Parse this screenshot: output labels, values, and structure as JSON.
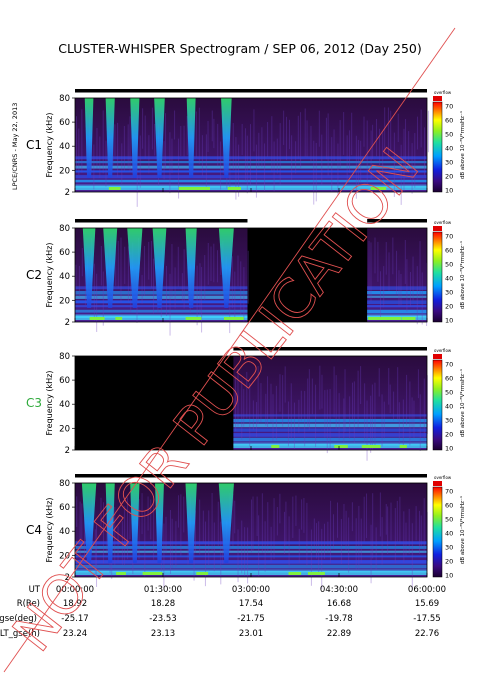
{
  "title": "CLUSTER-WHISPER Spectrogram / SEP 06, 2012 (Day 250)",
  "credit": "LPCE/CNRS - May 22, 2013",
  "watermark": "NOT FOR PUBLICATION",
  "colorbar": {
    "label": "dB above 10⁻⁸V²rmsHz⁻¹",
    "ticks": [
      "70",
      "60",
      "50",
      "40",
      "30",
      "20",
      "10"
    ],
    "top_label": "overflow"
  },
  "frequency_axis": {
    "label": "Frequency (kHz)",
    "ticks": [
      "80",
      "60",
      "40",
      "20",
      "2"
    ],
    "range": [
      2,
      80
    ]
  },
  "spacecraft": [
    {
      "name": "C1",
      "label_color": "#000000"
    },
    {
      "name": "C2",
      "label_color": "#000000"
    },
    {
      "name": "C3",
      "label_color": "#2faa3c"
    },
    {
      "name": "C4",
      "label_color": "#000000"
    }
  ],
  "orbit_table": {
    "row_labels": [
      "UT",
      "R(Re)",
      "Lat_gse(deg)",
      "LT_gse(h)"
    ],
    "columns": [
      {
        "UT": "00:00:00",
        "R(Re)": "18.92",
        "Lat_gse(deg)": "-25.17",
        "LT_gse(h)": "23.24"
      },
      {
        "UT": "01:30:00",
        "R(Re)": "18.28",
        "Lat_gse(deg)": "-23.53",
        "LT_gse(h)": "23.13"
      },
      {
        "UT": "03:00:00",
        "R(Re)": "17.54",
        "Lat_gse(deg)": "-21.75",
        "LT_gse(h)": "23.01"
      },
      {
        "UT": "04:30:00",
        "R(Re)": "16.68",
        "Lat_gse(deg)": "-19.78",
        "LT_gse(h)": "22.89"
      },
      {
        "UT": "06:00:00",
        "R(Re)": "15.69",
        "Lat_gse(deg)": "-17.55",
        "LT_gse(h)": "22.76"
      }
    ]
  },
  "chart_data": [
    {
      "type": "heatmap",
      "panel": "C1",
      "x_range": [
        "00:00:00",
        "06:00:00"
      ],
      "y_range_khz": [
        2,
        80
      ],
      "z_range_db": [
        10,
        70
      ],
      "coverage": [
        [
          0.0,
          1.0
        ]
      ]
    },
    {
      "type": "heatmap",
      "panel": "C2",
      "x_range": [
        "00:00:00",
        "06:00:00"
      ],
      "y_range_khz": [
        2,
        80
      ],
      "z_range_db": [
        10,
        70
      ],
      "coverage": [
        [
          0.0,
          0.49
        ],
        [
          0.83,
          1.0
        ]
      ]
    },
    {
      "type": "heatmap",
      "panel": "C3",
      "x_range": [
        "00:00:00",
        "06:00:00"
      ],
      "y_range_khz": [
        2,
        80
      ],
      "z_range_db": [
        10,
        70
      ],
      "coverage": [
        [
          0.45,
          1.0
        ]
      ]
    },
    {
      "type": "heatmap",
      "panel": "C4",
      "x_range": [
        "00:00:00",
        "06:00:00"
      ],
      "y_range_khz": [
        2,
        80
      ],
      "z_range_db": [
        10,
        70
      ],
      "coverage": [
        [
          0.0,
          1.0
        ]
      ]
    }
  ]
}
